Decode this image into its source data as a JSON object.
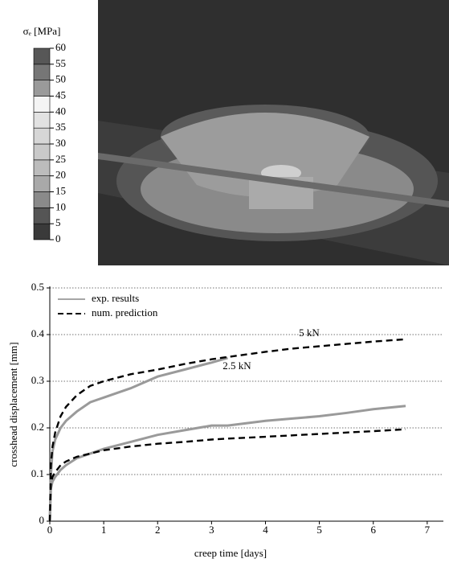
{
  "chart_data": [
    {
      "type": "colorbar",
      "title": "σₑ [MPa]",
      "ylim": [
        0,
        60
      ],
      "yticks": [
        0,
        5,
        10,
        15,
        20,
        25,
        30,
        35,
        40,
        45,
        50,
        55,
        60
      ],
      "colors": [
        "#3a3a3a",
        "#555555",
        "#8a8a8a",
        "#a9a9a9",
        "#bcbcbc",
        "#c9c9c9",
        "#d6d6d6",
        "#e2e2e2",
        "#f4f4f4",
        "#9a9a9a",
        "#767676",
        "#575757"
      ]
    },
    {
      "type": "line",
      "xlabel": "creep time [days]",
      "ylabel": "crosshead displacement [mm]",
      "xlim": [
        0,
        7.3
      ],
      "xticks": [
        0,
        1,
        2,
        3,
        4,
        5,
        6,
        7
      ],
      "ylim": [
        0,
        0.5
      ],
      "yticks": [
        0,
        0.1,
        0.2,
        0.3,
        0.4,
        0.5
      ],
      "grid": true,
      "legend": "upper left",
      "x": [
        0,
        0.02,
        0.05,
        0.1,
        0.2,
        0.3,
        0.5,
        0.75,
        1,
        1.5,
        2,
        2.5,
        3,
        3.3,
        4,
        4.5,
        5,
        5.5,
        6,
        6.6
      ],
      "series": [
        {
          "name": "exp. results",
          "color": "#9a9a9a",
          "dashed": false,
          "values": [
            0,
            0.1,
            0.15,
            0.175,
            0.2,
            0.215,
            0.235,
            0.255,
            0.265,
            0.285,
            0.31,
            0.325,
            0.34,
            0.35,
            null,
            null,
            null,
            null,
            null,
            null
          ]
        },
        {
          "name": "num. prediction",
          "color": "#000000",
          "dashed": true,
          "values": [
            0,
            0.12,
            0.16,
            0.19,
            0.225,
            0.245,
            0.27,
            0.29,
            0.3,
            0.315,
            0.325,
            0.337,
            0.347,
            0.352,
            0.363,
            0.37,
            0.375,
            0.38,
            0.385,
            0.39
          ]
        },
        {
          "color": "#9a9a9a",
          "dashed": false,
          "values": [
            0,
            0.07,
            0.085,
            0.095,
            0.11,
            0.12,
            0.135,
            0.145,
            0.155,
            0.17,
            0.185,
            0.195,
            0.205,
            0.205,
            0.215,
            0.22,
            0.225,
            0.232,
            0.24,
            0.247
          ]
        },
        {
          "color": "#000000",
          "dashed": true,
          "values": [
            0,
            0.08,
            0.095,
            0.105,
            0.12,
            0.128,
            0.138,
            0.145,
            0.152,
            0.16,
            0.166,
            0.17,
            0.175,
            0.177,
            0.181,
            0.184,
            0.187,
            0.19,
            0.193,
            0.197
          ]
        }
      ],
      "annotations": [
        "5 kN",
        "2.5 kN"
      ]
    }
  ]
}
